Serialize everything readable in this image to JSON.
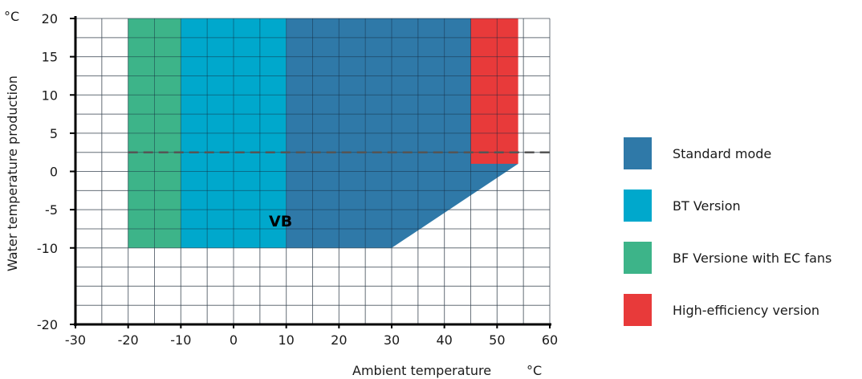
{
  "chart_data": {
    "type": "area",
    "xlabel": "Ambient temperature",
    "x_unit": "°C",
    "ylabel": "Water temperature production",
    "y_unit": "°C",
    "xlim": [
      -30,
      60
    ],
    "ylim": [
      -20,
      20
    ],
    "x_ticks": [
      "-30",
      "-20",
      "-10",
      "0",
      "10",
      "20",
      "30",
      "40",
      "50",
      "60"
    ],
    "y_ticks": [
      "20",
      "15",
      "10",
      "5",
      "0",
      "-5",
      "-10",
      "-20"
    ],
    "x_tick_values": [
      -30,
      -20,
      -10,
      0,
      10,
      20,
      30,
      40,
      50,
      60
    ],
    "y_tick_values": [
      20,
      15,
      10,
      5,
      0,
      -5,
      -10,
      -20
    ],
    "grid": true,
    "grid_minor_step_x": 5,
    "grid_minor_step_y": 2.5,
    "legend_position": "right",
    "series": [
      {
        "name": "BF Versione with EC fans",
        "color": "#3db489",
        "polygon": [
          [
            -20,
            -10
          ],
          [
            -10,
            -10
          ],
          [
            -10,
            20
          ],
          [
            -20,
            20
          ]
        ]
      },
      {
        "name": "BT Version",
        "color": "#00a8cc",
        "polygon": [
          [
            -10,
            -10
          ],
          [
            10,
            -10
          ],
          [
            10,
            20
          ],
          [
            -10,
            20
          ]
        ]
      },
      {
        "name": "Standard mode",
        "color": "#2f79a8",
        "polygon": [
          [
            10,
            -10
          ],
          [
            30,
            -10
          ],
          [
            54,
            1
          ],
          [
            54,
            1
          ],
          [
            45,
            1
          ],
          [
            45,
            20
          ],
          [
            10,
            20
          ]
        ]
      },
      {
        "name": "High-efficiency version",
        "color": "#e83a3a",
        "polygon": [
          [
            45,
            1
          ],
          [
            54,
            1
          ],
          [
            54,
            20
          ],
          [
            45,
            20
          ]
        ]
      }
    ],
    "reference_line": {
      "y": 2.5,
      "x_range": [
        -20,
        60
      ],
      "style": "dashed",
      "color": "#555555"
    },
    "annotations": [
      {
        "text": "VB",
        "x": 10,
        "y": -3
      }
    ]
  },
  "legend": {
    "items": [
      {
        "label": "Standard mode",
        "color": "#2f79a8"
      },
      {
        "label": "BT Version",
        "color": "#00a8cc"
      },
      {
        "label": "BF Versione with EC fans",
        "color": "#3db489"
      },
      {
        "label": "High-efficiency version",
        "color": "#e83a3a"
      }
    ]
  }
}
